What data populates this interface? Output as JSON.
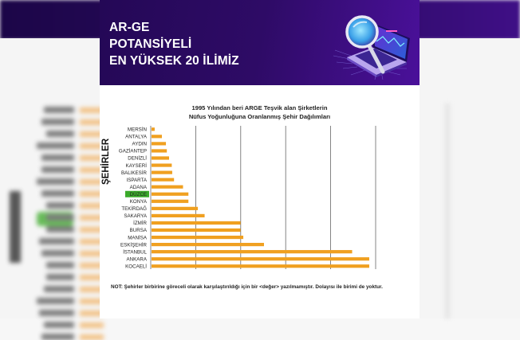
{
  "header": {
    "title_lines": [
      "AR-GE",
      "POTANSİYELİ",
      "EN YÜKSEK 20 İLİMİZ"
    ],
    "illustration": "magnifier-over-laptop-icon",
    "colors": {
      "header_bg": "#2a0a60",
      "bar": "#f0a020",
      "highlight": "#3aaa2a",
      "gridline": "#666666"
    }
  },
  "chart_data": {
    "type": "bar",
    "orientation": "horizontal",
    "title_lines": [
      "1995 Yılından beri ARGE Teşvik alan Şirketlerin",
      "Nüfus Yoğunluğuna Oranlanmış Şehir Dağılımları"
    ],
    "ylabel": "ŞEHİRLER",
    "xlabel": "",
    "categories": [
      "MERSİN",
      "ANTALYA",
      "AYDIN",
      "GAZİANTEP",
      "DENİZLİ",
      "KAYSERİ",
      "BALIKESİR",
      "ISPARTA",
      "ADANA",
      "DÜZCE",
      "KONYA",
      "TEKİRDAĞ",
      "SAKARYA",
      "İZMİR",
      "BURSA",
      "MANİSA",
      "ESKİŞEHİR",
      "İSTANBUL",
      "ANKARA",
      "KOCAELİ"
    ],
    "values": [
      0.07,
      0.23,
      0.32,
      0.34,
      0.39,
      0.45,
      0.46,
      0.5,
      0.7,
      0.82,
      0.82,
      1.03,
      1.18,
      1.98,
      1.98,
      2.04,
      2.5,
      4.46,
      4.84,
      4.84
    ],
    "highlighted_category": "DÜZCE",
    "xlim": [
      0,
      5
    ],
    "gridlines": [
      1,
      2,
      3,
      4,
      5
    ],
    "grid": true,
    "legend": "none"
  },
  "note": "NOT: Şehirler birbirine göreceli olarak karşılaştırıldığı için bir <değer> yazılmamıştır. Dolayısı ile birimi de yoktur."
}
